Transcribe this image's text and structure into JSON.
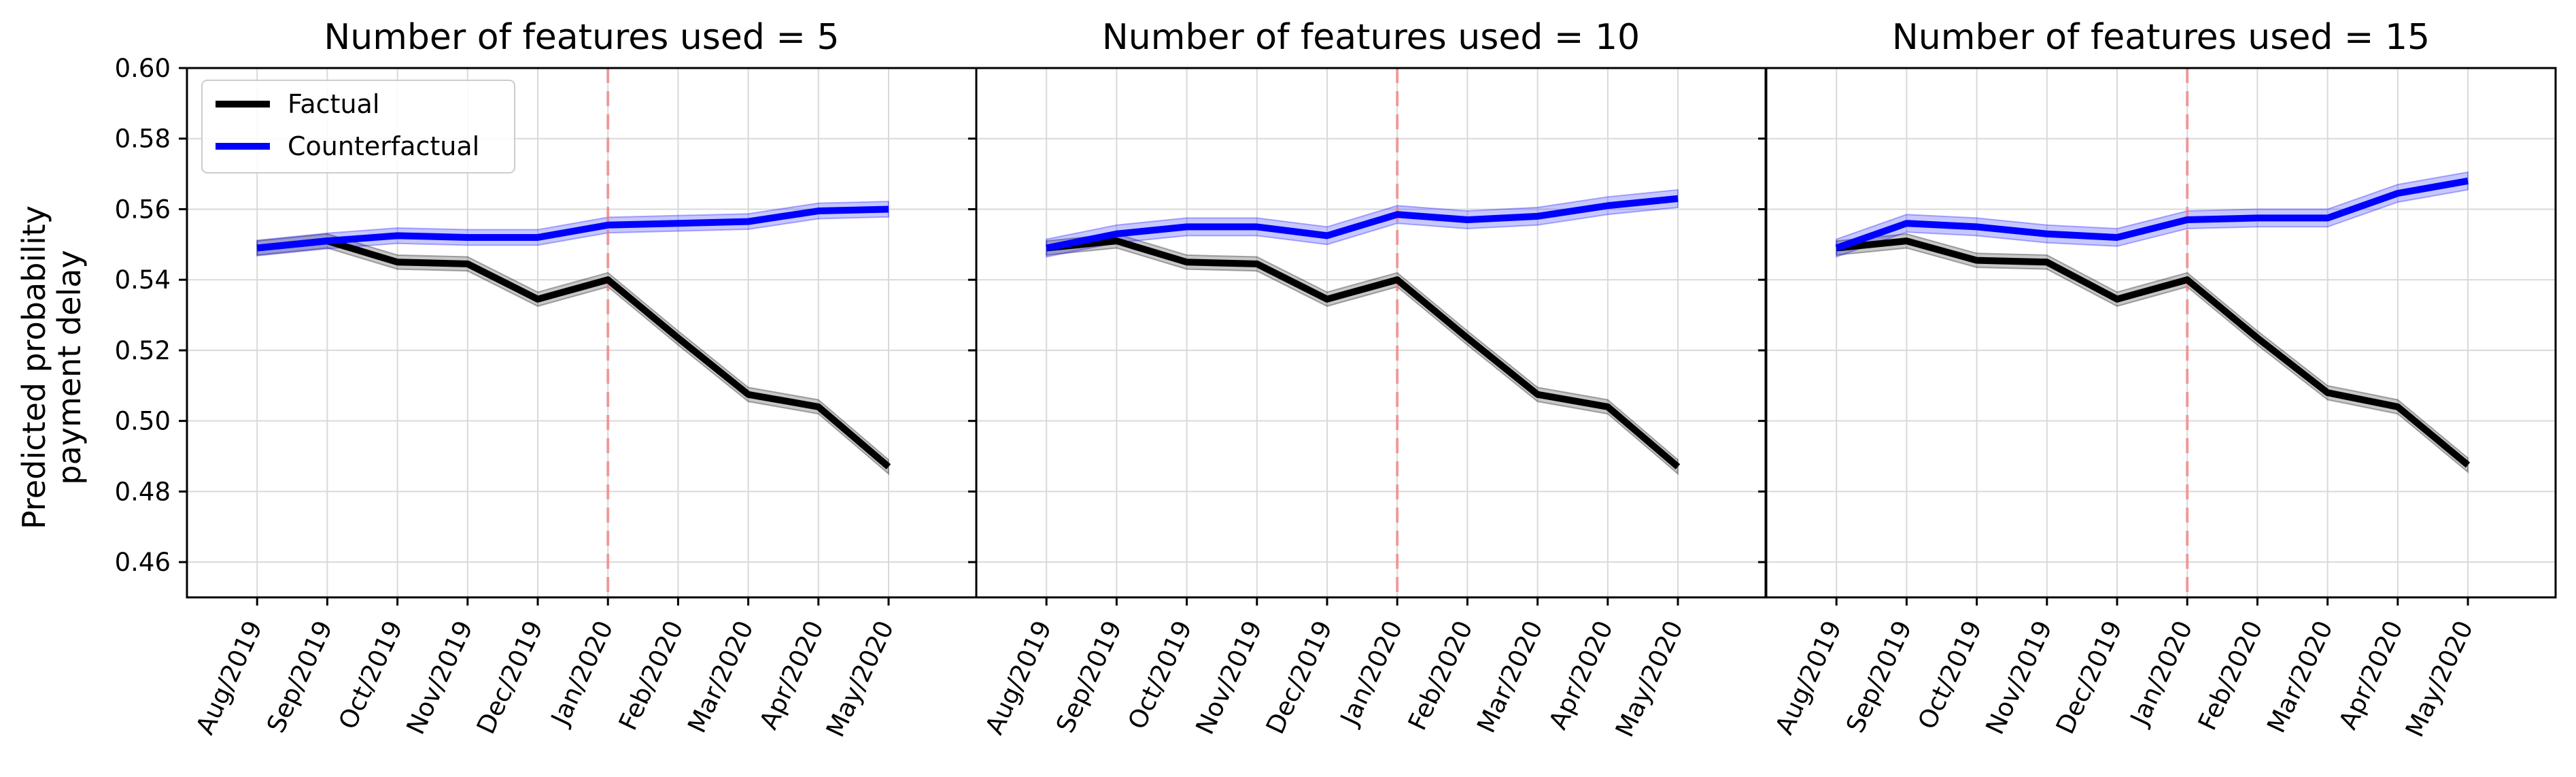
{
  "figure": {
    "ylabel_line1": "Predicted probability",
    "ylabel_line2": "payment delay"
  },
  "colors": {
    "factual": "#000000",
    "counterfactual": "#0000ff",
    "event_line": "#f08080",
    "grid": "#d9d9d9"
  },
  "chart_data": [
    {
      "type": "line",
      "title": "Number of features used = 5",
      "categories": [
        "Aug/2019",
        "Sep/2019",
        "Oct/2019",
        "Nov/2019",
        "Dec/2019",
        "Jan/2020",
        "Feb/2020",
        "Mar/2020",
        "Apr/2020",
        "May/2020"
      ],
      "ylim": [
        0.45,
        0.6
      ],
      "yticks": [
        "0.46",
        "0.48",
        "0.50",
        "0.52",
        "0.54",
        "0.56",
        "0.58",
        "0.60"
      ],
      "event_index": 5,
      "grid": true,
      "legend": "upper left",
      "series": [
        {
          "name": "Factual",
          "values": [
            0.549,
            0.551,
            0.545,
            0.5445,
            0.5345,
            0.54,
            0.5235,
            0.5075,
            0.504,
            0.487
          ],
          "band": 0.002
        },
        {
          "name": "Counterfactual",
          "values": [
            0.549,
            0.551,
            0.5525,
            0.552,
            0.552,
            0.5555,
            0.556,
            0.5565,
            0.5595,
            0.56
          ],
          "band": 0.0022
        }
      ]
    },
    {
      "type": "line",
      "title": "Number of features used = 10",
      "categories": [
        "Aug/2019",
        "Sep/2019",
        "Oct/2019",
        "Nov/2019",
        "Dec/2019",
        "Jan/2020",
        "Feb/2020",
        "Mar/2020",
        "Apr/2020",
        "May/2020"
      ],
      "ylim": [
        0.45,
        0.6
      ],
      "event_index": 5,
      "grid": true,
      "series": [
        {
          "name": "Factual",
          "values": [
            0.549,
            0.551,
            0.545,
            0.5445,
            0.5345,
            0.54,
            0.5235,
            0.5075,
            0.504,
            0.487
          ],
          "band": 0.002
        },
        {
          "name": "Counterfactual",
          "values": [
            0.549,
            0.553,
            0.555,
            0.555,
            0.5525,
            0.5585,
            0.557,
            0.558,
            0.561,
            0.563
          ],
          "band": 0.0025
        }
      ]
    },
    {
      "type": "line",
      "title": "Number of features used = 15",
      "categories": [
        "Aug/2019",
        "Sep/2019",
        "Oct/2019",
        "Nov/2019",
        "Dec/2019",
        "Jan/2020",
        "Feb/2020",
        "Mar/2020",
        "Apr/2020",
        "May/2020"
      ],
      "ylim": [
        0.45,
        0.6
      ],
      "event_index": 5,
      "grid": true,
      "series": [
        {
          "name": "Factual",
          "values": [
            0.549,
            0.551,
            0.5455,
            0.545,
            0.5345,
            0.54,
            0.5235,
            0.508,
            0.504,
            0.4875
          ],
          "band": 0.002
        },
        {
          "name": "Counterfactual",
          "values": [
            0.549,
            0.556,
            0.555,
            0.553,
            0.552,
            0.557,
            0.5575,
            0.5575,
            0.5645,
            0.568
          ],
          "band": 0.0025
        }
      ]
    }
  ]
}
